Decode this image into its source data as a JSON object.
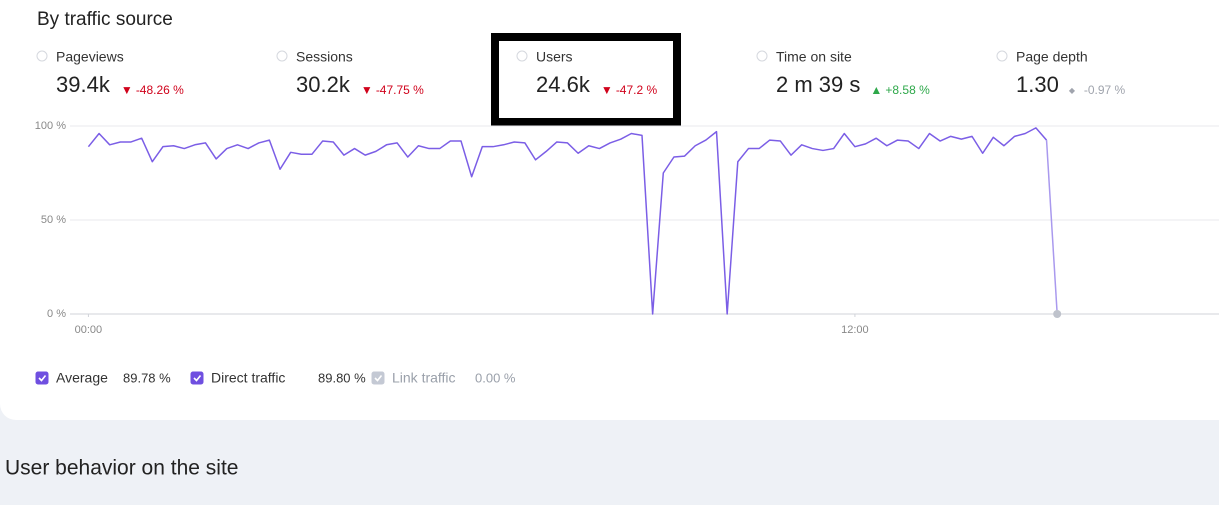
{
  "header": {
    "title": "By traffic source"
  },
  "metrics": [
    {
      "label": "Pageviews",
      "value": "39.4k",
      "change": "-48.26 %",
      "trend": "down"
    },
    {
      "label": "Sessions",
      "value": "30.2k",
      "change": "-47.75 %",
      "trend": "down"
    },
    {
      "label": "Users",
      "value": "24.6k",
      "change": "-47.2 %",
      "trend": "down"
    },
    {
      "label": "Time on site",
      "value": "2 m 39 s",
      "change": "+8.58 %",
      "trend": "up"
    },
    {
      "label": "Page depth",
      "value": "1.30",
      "change": "-0.97 %",
      "trend": "flat"
    }
  ],
  "chart_data": {
    "type": "line",
    "color": "#7b5ee6",
    "x": [
      0,
      10,
      20,
      30,
      40,
      50,
      60,
      70,
      80,
      90,
      100,
      110,
      120,
      130,
      140,
      150,
      160,
      170,
      180,
      190,
      200,
      210,
      220,
      230,
      240,
      250,
      260,
      270,
      280,
      290,
      300,
      310,
      320,
      330,
      340,
      350,
      360,
      370,
      380,
      390,
      400,
      410,
      420,
      430,
      440,
      450,
      460,
      470,
      480,
      490,
      500,
      510,
      520,
      530,
      540,
      550,
      560,
      570,
      580,
      590,
      600,
      610,
      620,
      630,
      640,
      650,
      660,
      670,
      680,
      690,
      700,
      710,
      720,
      730,
      740,
      750,
      760,
      770,
      780,
      790,
      800,
      810,
      820,
      830,
      840,
      850,
      860,
      870,
      880,
      890,
      900,
      910
    ],
    "values": [
      89,
      96,
      90,
      91.5,
      91.5,
      93.5,
      81,
      89,
      89.5,
      88,
      90,
      91,
      82.5,
      88,
      90,
      88,
      91,
      92.5,
      77,
      86,
      85,
      85,
      92,
      91.5,
      84.5,
      88,
      84.5,
      86.5,
      90,
      91,
      83.5,
      89.5,
      88,
      88,
      92,
      92,
      73,
      89,
      89,
      90,
      91.5,
      91,
      82,
      86.5,
      91.5,
      91,
      85.5,
      89.5,
      88,
      91,
      93,
      96,
      95,
      0,
      75,
      83.5,
      84,
      89.5,
      92.5,
      97,
      0,
      81,
      88,
      88,
      92.5,
      92,
      84.5,
      90,
      88,
      87,
      88,
      96,
      89,
      90.5,
      93.5,
      89.5,
      92.5,
      92,
      88,
      96,
      92,
      94.5,
      93,
      94.5,
      85.5,
      94,
      89.5,
      94.5,
      96,
      99,
      92.5,
      0
    ],
    "xlim": [
      -22,
      1062
    ],
    "xticks": [
      {
        "value": 0,
        "label": "00:00"
      },
      {
        "value": 720,
        "label": "12:00"
      }
    ],
    "ylim": [
      0,
      100
    ],
    "yticks": [
      {
        "value": 0,
        "label": "0 %"
      },
      {
        "value": 50,
        "label": "50 %"
      },
      {
        "value": 100,
        "label": "100 %"
      }
    ],
    "grid": true,
    "legend": [
      {
        "name": "Average",
        "value_label": "89.78 %",
        "checked": true,
        "color": "#6f4fe0"
      },
      {
        "name": "Direct traffic",
        "value_label": "89.80 %",
        "checked": true,
        "color": "#6f4fe0"
      },
      {
        "name": "Link traffic",
        "value_label": "0.00 %",
        "checked": true,
        "color": "#c4c9d4"
      }
    ]
  },
  "section": {
    "title": "User behavior on the site"
  }
}
